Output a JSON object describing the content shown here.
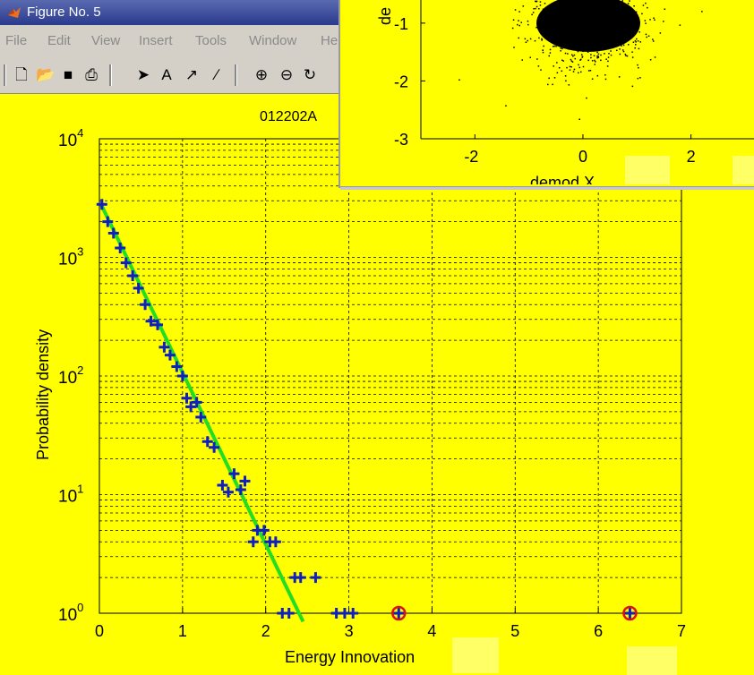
{
  "window": {
    "title": "Figure No. 5",
    "menu": [
      "File",
      "Edit",
      "View",
      "Insert",
      "Tools",
      "Window",
      "He"
    ],
    "toolbar_icons": [
      "new-file-icon",
      "open-folder-icon",
      "save-icon",
      "print-icon",
      "select-arrow-icon",
      "text-icon",
      "arrow-icon",
      "line-icon",
      "zoom-in-icon",
      "zoom-out-icon",
      "rotate-icon"
    ]
  },
  "colors": {
    "background": "#ffff00",
    "marker": "#1020c0",
    "fit_line": "#22dd22",
    "outlier_ring": "#e01010"
  },
  "main_plot": {
    "title": "012202A",
    "chart_data": {
      "type": "scatter",
      "title": "012202A",
      "xlabel": "Energy Innovation",
      "ylabel": "Probability density",
      "xlim": [
        0,
        7
      ],
      "ylim": [
        1,
        10000
      ],
      "yscale": "log",
      "grid": true,
      "xticks": [
        "0",
        "1",
        "2",
        "3",
        "4",
        "5",
        "6",
        "7"
      ],
      "yticks": [
        "10^0",
        "10^1",
        "10^2",
        "10^3",
        "10^4"
      ],
      "series": [
        {
          "name": "",
          "marker": "plus",
          "x": [
            0.03,
            0.1,
            0.17,
            0.25,
            0.32,
            0.4,
            0.47,
            0.55,
            0.62,
            0.7,
            0.78,
            0.85,
            0.93,
            1.0,
            1.05,
            1.1,
            1.17,
            1.22,
            1.3,
            1.38,
            1.48,
            1.55,
            1.62,
            1.7,
            1.75,
            1.85,
            1.9,
            1.98,
            2.05,
            2.12,
            2.2,
            2.28,
            2.35,
            2.42,
            2.6,
            2.85,
            2.95,
            3.05,
            3.6,
            6.38
          ],
          "y": [
            2800,
            2000,
            1600,
            1200,
            900,
            700,
            550,
            400,
            290,
            270,
            175,
            150,
            120,
            100,
            65,
            55,
            60,
            45,
            28,
            25,
            12,
            10.5,
            15,
            11,
            13,
            4,
            5,
            5,
            4,
            4,
            1,
            1,
            2,
            2,
            2,
            1,
            1,
            1,
            1,
            1
          ]
        },
        {
          "name": "",
          "type": "line",
          "x": [
            0.02,
            2.45
          ],
          "y": [
            2800,
            0.85
          ]
        },
        {
          "name": "",
          "marker": "circle",
          "x": [
            3.6,
            6.38
          ],
          "y": [
            1,
            1
          ]
        }
      ]
    }
  },
  "inset_plot": {
    "ylabel_partial": "de",
    "xlabel_partial": "demod X",
    "chart_data": {
      "type": "scatter",
      "xlabel": "demod X",
      "ylabel": "de",
      "xticks": [
        "-2",
        "0",
        "2"
      ],
      "yticks": [
        "-1",
        "-2",
        "-3"
      ],
      "xlim": [
        -3,
        3.2
      ],
      "ylim": [
        -3,
        -0.6
      ]
    }
  }
}
